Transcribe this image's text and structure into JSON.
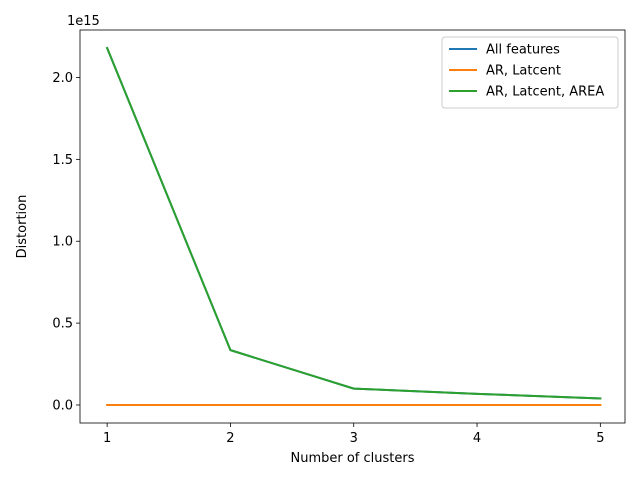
{
  "chart_data": {
    "type": "line",
    "title": "",
    "xlabel": "Number of clusters",
    "ylabel": "Distortion",
    "offset_text": "1e15",
    "x": [
      1,
      2,
      3,
      4,
      5
    ],
    "x_ticks": [
      "1",
      "2",
      "3",
      "4",
      "5"
    ],
    "y_ticks": [
      "0.0",
      "0.5",
      "1.0",
      "1.5",
      "2.0"
    ],
    "y_tick_values": [
      0.0,
      0.5,
      1.0,
      1.5,
      2.0
    ],
    "xlim": [
      0.78,
      5.2
    ],
    "ylim": [
      -0.11,
      2.29
    ],
    "grid": false,
    "legend_position": "top-right",
    "series": [
      {
        "name": "All features",
        "color": "#1f77b4",
        "values": [
          2.18,
          0.335,
          0.1,
          0.068,
          0.04
        ]
      },
      {
        "name": "AR, Latcent",
        "color": "#ff7f0e",
        "values": [
          0.0,
          0.0,
          0.0,
          0.0,
          0.0
        ]
      },
      {
        "name": "AR, Latcent, AREA",
        "color": "#2ca02c",
        "values": [
          2.18,
          0.335,
          0.1,
          0.068,
          0.04
        ]
      }
    ]
  }
}
